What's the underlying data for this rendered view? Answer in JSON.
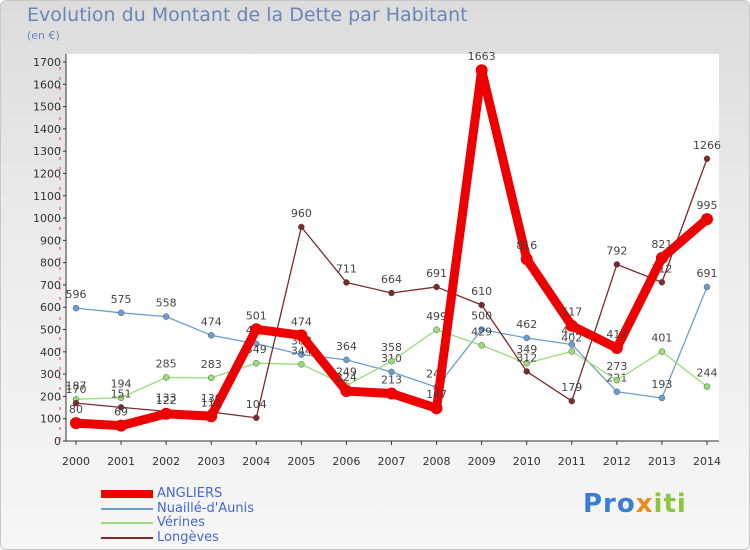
{
  "chart_data": {
    "type": "line",
    "title": "Evolution du Montant de la Dette par Habitant",
    "subtitle": "(en €)",
    "x": [
      "2000",
      "2001",
      "2002",
      "2003",
      "2004",
      "2005",
      "2006",
      "2007",
      "2008",
      "2009",
      "2010",
      "2011",
      "2012",
      "2013",
      "2014"
    ],
    "ylim": [
      0,
      1700
    ],
    "yticks": [
      0,
      100,
      200,
      300,
      400,
      500,
      600,
      700,
      800,
      900,
      1000,
      1100,
      1200,
      1300,
      1400,
      1500,
      1600,
      1700
    ],
    "grid": false,
    "legend_position": "bottom-left",
    "series": [
      {
        "name": "ANGLIERS",
        "color": "#ee0000",
        "values": [
          80,
          69,
          122,
          111,
          501,
          474,
          224,
          213,
          147,
          1663,
          816,
          517,
          417,
          821,
          995
        ]
      },
      {
        "name": "Nuaillé-d'Aunis",
        "color": "#6a9ed0",
        "values": [
          596,
          575,
          558,
          474,
          436,
          388,
          364,
          310,
          241,
          500,
          462,
          433,
          221,
          193,
          691
        ]
      },
      {
        "name": "Vérines",
        "color": "#99dd77",
        "values": [
          187,
          194,
          285,
          283,
          349,
          344,
          249,
          358,
          499,
          429,
          349,
          402,
          273,
          401,
          244
        ]
      },
      {
        "name": "Longèves",
        "color": "#7a2a2a",
        "values": [
          170,
          151,
          133,
          130,
          104,
          960,
          711,
          664,
          691,
          610,
          312,
          179,
          792,
          712,
          1266
        ]
      }
    ]
  },
  "logo": {
    "text_a": "Pro",
    "text_b": "x",
    "text_c": "iti"
  }
}
